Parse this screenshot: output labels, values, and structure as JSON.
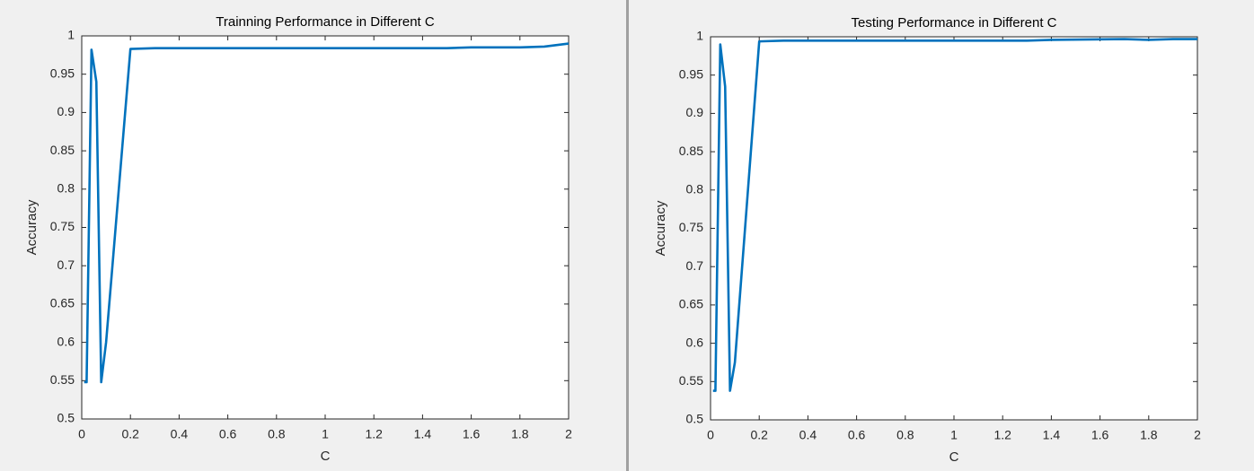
{
  "chart_data": [
    {
      "type": "line",
      "title": "Trainning Performance in Different C",
      "x_label": "C",
      "y_label": "Accuracy",
      "x": [
        0.01,
        0.02,
        0.04,
        0.06,
        0.08,
        0.1,
        0.2,
        0.3,
        0.5,
        1,
        1.5,
        1.6,
        1.8,
        1.9,
        2
      ],
      "values": [
        0.548,
        0.548,
        0.982,
        0.94,
        0.548,
        0.6,
        0.983,
        0.984,
        0.984,
        0.984,
        0.984,
        0.985,
        0.985,
        0.986,
        0.99
      ],
      "color": "#0072bd",
      "xlim": [
        0,
        2
      ],
      "xticks": [
        0,
        0.2,
        0.4,
        0.6,
        0.8,
        1,
        1.2,
        1.4,
        1.6,
        1.8,
        2
      ],
      "ylim": [
        0.5,
        1
      ],
      "yticks": [
        0.5,
        0.55,
        0.6,
        0.65,
        0.7,
        0.75,
        0.8,
        0.85,
        0.9,
        0.95,
        1
      ],
      "grid": false
    },
    {
      "type": "line",
      "title": "Testing Performance in Different C",
      "x_label": "C",
      "y_label": "Accuracy",
      "x": [
        0.01,
        0.02,
        0.04,
        0.06,
        0.08,
        0.1,
        0.2,
        0.3,
        0.5,
        1,
        1.3,
        1.4,
        1.7,
        1.8,
        1.9,
        2
      ],
      "values": [
        0.538,
        0.538,
        0.99,
        0.935,
        0.538,
        0.575,
        0.994,
        0.995,
        0.995,
        0.995,
        0.995,
        0.996,
        0.997,
        0.996,
        0.997,
        0.997
      ],
      "color": "#0072bd",
      "xlim": [
        0,
        2
      ],
      "xticks": [
        0,
        0.2,
        0.4,
        0.6,
        0.8,
        1,
        1.2,
        1.4,
        1.6,
        1.8,
        2
      ],
      "ylim": [
        0.5,
        1
      ],
      "yticks": [
        0.5,
        0.55,
        0.6,
        0.65,
        0.7,
        0.75,
        0.8,
        0.85,
        0.9,
        0.95,
        1
      ],
      "grid": false
    }
  ]
}
